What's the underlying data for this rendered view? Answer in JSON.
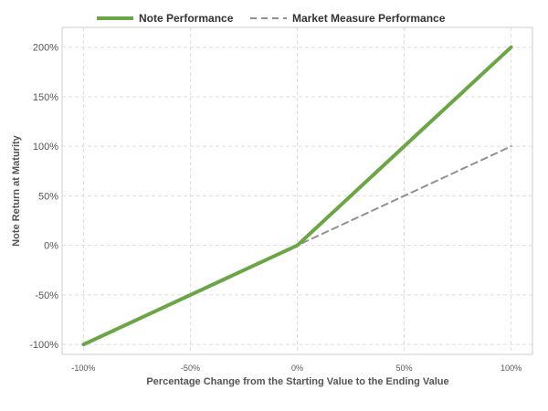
{
  "chart_data": {
    "type": "line",
    "xlabel": "Percentage Change from the Starting Value to the Ending Value",
    "ylabel": "Note Return at Maturity",
    "xlim": [
      -110,
      110
    ],
    "ylim": [
      -110,
      220
    ],
    "x_ticks": [
      -100,
      -50,
      0,
      50,
      100
    ],
    "x_tick_labels": [
      "-100%",
      "-50%",
      "0%",
      "50%",
      "100%"
    ],
    "y_ticks": [
      -100,
      -50,
      0,
      50,
      100,
      150,
      200
    ],
    "y_tick_labels": [
      "-100%",
      "-50%",
      "0%",
      "50%",
      "100%",
      "150%",
      "200%"
    ],
    "grid": true,
    "legend_position": "top",
    "series": [
      {
        "name": "Note Performance",
        "style": "solid",
        "color": "#6ba547",
        "x": [
          -100,
          0,
          100
        ],
        "y": [
          -100,
          0,
          200
        ]
      },
      {
        "name": "Market Measure Performance",
        "style": "dashed",
        "color": "#919191",
        "x": [
          -100,
          0,
          100
        ],
        "y": [
          -100,
          0,
          100
        ]
      }
    ]
  }
}
